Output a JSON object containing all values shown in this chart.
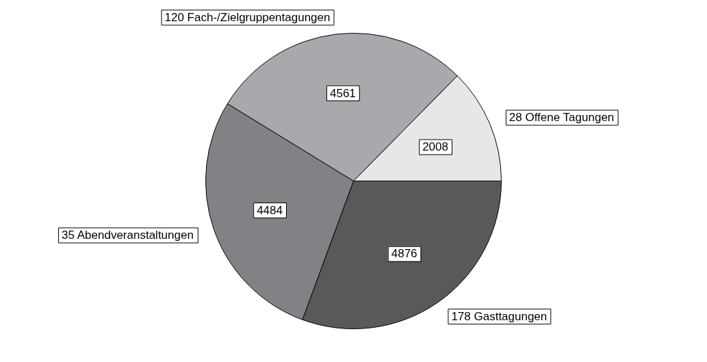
{
  "chart_data": {
    "type": "pie",
    "categories": [
      "28 Offene Tagungen",
      "178 Gasttagungen",
      "35 Abendveranstaltungen",
      "120 Fach-/Zielgruppentagungen"
    ],
    "values": [
      2008,
      4876,
      4484,
      4561
    ],
    "colors": [
      "#e6e7e8",
      "#58595b",
      "#808285",
      "#a7a9ac"
    ],
    "data_labels": true,
    "legend": false
  }
}
